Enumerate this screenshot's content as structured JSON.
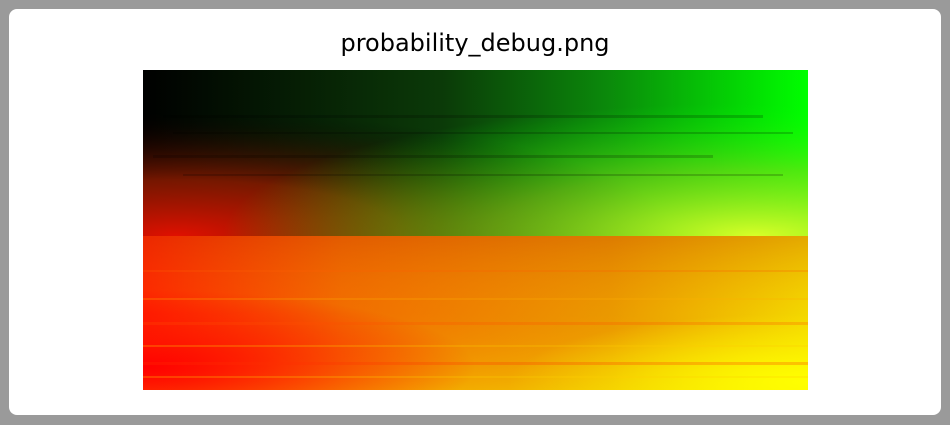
{
  "window": {
    "title": "probability_debug.png"
  },
  "image": {
    "top_region_colors": {
      "left": "#000000",
      "right": "#00ff00",
      "bottom_left": "#cc1100",
      "bottom_right": "#c8ff22"
    },
    "bottom_region_colors": {
      "top_left": "#e04010",
      "top_right": "#e8c000",
      "bottom_left": "#ff0000",
      "bottom_right": "#ffff00"
    }
  }
}
